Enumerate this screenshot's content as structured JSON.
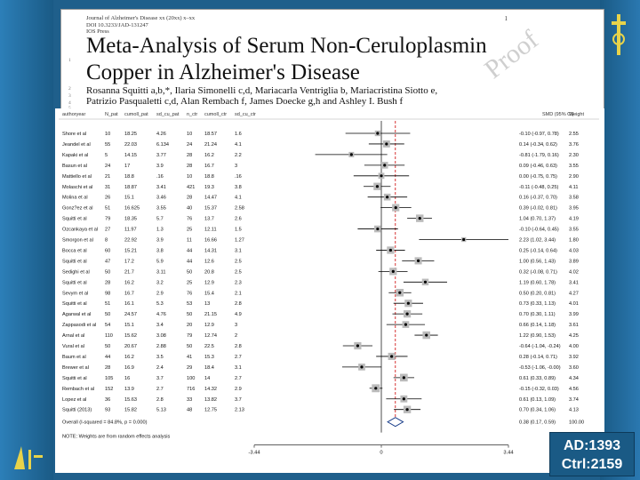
{
  "paper": {
    "journal": "Journal of Alzheimer's Disease xx (20xx) x–xx",
    "doi": "DOI 10.3233/JAD-131247",
    "press": "IOS Press",
    "page": "1",
    "title_line1": "Meta-Analysis of Serum Non-Ceruloplasmin",
    "title_line2": "Copper in Alzheimer's Disease",
    "authors_line1": "Rosanna Squitti a,b,*, Ilaria Simonelli c,d, Mariacarla Ventriglia b, Mariacristina Siotto e,",
    "authors_line2": "Patrizio Pasqualetti c,d, Alan Rembach f, James Doecke g,h and Ashley I. Bush f",
    "watermark": "Proof",
    "line_numbers": [
      "1",
      "2",
      "3",
      "4",
      "5"
    ]
  },
  "forest": {
    "headers": [
      "authoryear",
      "N_pat",
      "cumoll_pat",
      "sd_cu_pat",
      "n_ctr",
      "cumoll_ctr",
      "sd_cu_ctr",
      "SMD (95% CI)",
      "Weight"
    ],
    "rows": [
      {
        "author": "Shore et al",
        "n_pat": "10",
        "cu_pat": "18.25",
        "sd_pat": "4.26",
        "n_ctr": "10",
        "cu_ctr": "18.57",
        "sd_ctr": "1.6",
        "ci": "-0.10 (-0.97, 0.78)",
        "weight": "2.55",
        "smd": -0.1,
        "lo": -0.97,
        "hi": 0.78
      },
      {
        "author": "Jeandel et al",
        "n_pat": "55",
        "cu_pat": "22.03",
        "sd_pat": "6.134",
        "n_ctr": "24",
        "cu_ctr": "21.24",
        "sd_ctr": "4.1",
        "ci": "0.14 (-0.34, 0.62)",
        "weight": "3.76",
        "smd": 0.14,
        "lo": -0.34,
        "hi": 0.62
      },
      {
        "author": "Kapaki et al",
        "n_pat": "5",
        "cu_pat": "14.15",
        "sd_pat": "3.77",
        "n_ctr": "28",
        "cu_ctr": "16.2",
        "sd_ctr": "2.2",
        "ci": "-0.81 (-1.79, 0.16)",
        "weight": "2.30",
        "smd": -0.81,
        "lo": -1.79,
        "hi": 0.16
      },
      {
        "author": "Basun et al",
        "n_pat": "24",
        "cu_pat": "17",
        "sd_pat": "3.9",
        "n_ctr": "28",
        "cu_ctr": "16.7",
        "sd_ctr": "3",
        "ci": "0.09 (-0.46, 0.63)",
        "weight": "3.55",
        "smd": 0.09,
        "lo": -0.46,
        "hi": 0.63
      },
      {
        "author": "Mattiello et al",
        "n_pat": "21",
        "cu_pat": "18.8",
        "sd_pat": ".16",
        "n_ctr": "10",
        "cu_ctr": "18.8",
        "sd_ctr": ".16",
        "ci": "0.00 (-0.75, 0.75)",
        "weight": "2.90",
        "smd": 0.0,
        "lo": -0.75,
        "hi": 0.75
      },
      {
        "author": "Molaschi et al",
        "n_pat": "31",
        "cu_pat": "18.87",
        "sd_pat": "3.41",
        "n_ctr": "421",
        "cu_ctr": "19.3",
        "sd_ctr": "3.8",
        "ci": "-0.11 (-0.48, 0.25)",
        "weight": "4.11",
        "smd": -0.11,
        "lo": -0.48,
        "hi": 0.25
      },
      {
        "author": "Molina et al",
        "n_pat": "26",
        "cu_pat": "15.1",
        "sd_pat": "3.46",
        "n_ctr": "28",
        "cu_ctr": "14.47",
        "sd_ctr": "4.1",
        "ci": "0.16 (-0.37, 0.70)",
        "weight": "3.58",
        "smd": 0.16,
        "lo": -0.37,
        "hi": 0.7
      },
      {
        "author": "Gonz?ez et al",
        "n_pat": "51",
        "cu_pat": "16.625",
        "sd_pat": "3.55",
        "n_ctr": "40",
        "cu_ctr": "15.37",
        "sd_ctr": "2.58",
        "ci": "0.39 (-0.02, 0.81)",
        "weight": "3.95",
        "smd": 0.39,
        "lo": -0.02,
        "hi": 0.81
      },
      {
        "author": "Squitti et al",
        "n_pat": "79",
        "cu_pat": "18.35",
        "sd_pat": "5.7",
        "n_ctr": "76",
        "cu_ctr": "13.7",
        "sd_ctr": "2.6",
        "ci": "1.04 (0.70, 1.37)",
        "weight": "4.19",
        "smd": 1.04,
        "lo": 0.7,
        "hi": 1.37
      },
      {
        "author": "Ozcankaya et al",
        "n_pat": "27",
        "cu_pat": "11.97",
        "sd_pat": "1.3",
        "n_ctr": "25",
        "cu_ctr": "12.11",
        "sd_ctr": "1.5",
        "ci": "-0.10 (-0.64, 0.45)",
        "weight": "3.55",
        "smd": -0.1,
        "lo": -0.64,
        "hi": 0.45
      },
      {
        "author": "Smorgon et al",
        "n_pat": "8",
        "cu_pat": "22.92",
        "sd_pat": "3.9",
        "n_ctr": "11",
        "cu_ctr": "16.66",
        "sd_ctr": "1.27",
        "ci": "2.23 (1.02, 3.44)",
        "weight": "1.80",
        "smd": 2.23,
        "lo": 1.02,
        "hi": 3.44
      },
      {
        "author": "Bocca et al",
        "n_pat": "60",
        "cu_pat": "15.21",
        "sd_pat": "3.8",
        "n_ctr": "44",
        "cu_ctr": "14.31",
        "sd_ctr": "3.1",
        "ci": "0.25 (-0.14, 0.64)",
        "weight": "4.03",
        "smd": 0.25,
        "lo": -0.14,
        "hi": 0.64
      },
      {
        "author": "Squitti et al",
        "n_pat": "47",
        "cu_pat": "17.2",
        "sd_pat": "5.9",
        "n_ctr": "44",
        "cu_ctr": "12.6",
        "sd_ctr": "2.5",
        "ci": "1.00 (0.56, 1.43)",
        "weight": "3.89",
        "smd": 1.0,
        "lo": 0.56,
        "hi": 1.43
      },
      {
        "author": "Sedighi et al",
        "n_pat": "50",
        "cu_pat": "21.7",
        "sd_pat": "3.11",
        "n_ctr": "50",
        "cu_ctr": "20.8",
        "sd_ctr": "2.5",
        "ci": "0.32 (-0.08, 0.71)",
        "weight": "4.02",
        "smd": 0.32,
        "lo": -0.08,
        "hi": 0.71
      },
      {
        "author": "Squitti et al",
        "n_pat": "28",
        "cu_pat": "16.2",
        "sd_pat": "3.2",
        "n_ctr": "25",
        "cu_ctr": "12.9",
        "sd_ctr": "2.3",
        "ci": "1.19 (0.60, 1.78)",
        "weight": "3.41",
        "smd": 1.19,
        "lo": 0.6,
        "hi": 1.78
      },
      {
        "author": "Sevym et al",
        "n_pat": "98",
        "cu_pat": "16.7",
        "sd_pat": "2.9",
        "n_ctr": "76",
        "cu_ctr": "15.4",
        "sd_ctr": "2.1",
        "ci": "0.50 (0.20, 0.81)",
        "weight": "4.27",
        "smd": 0.5,
        "lo": 0.2,
        "hi": 0.81
      },
      {
        "author": "Squitti et al",
        "n_pat": "51",
        "cu_pat": "16.1",
        "sd_pat": "5.3",
        "n_ctr": "53",
        "cu_ctr": "13",
        "sd_ctr": "2.8",
        "ci": "0.73 (0.33, 1.13)",
        "weight": "4.01",
        "smd": 0.73,
        "lo": 0.33,
        "hi": 1.13
      },
      {
        "author": "Agarwal et al",
        "n_pat": "50",
        "cu_pat": "24.57",
        "sd_pat": "4.76",
        "n_ctr": "50",
        "cu_ctr": "21.15",
        "sd_ctr": "4.9",
        "ci": "0.70 (0.30, 1.11)",
        "weight": "3.99",
        "smd": 0.7,
        "lo": 0.3,
        "hi": 1.11
      },
      {
        "author": "Zappasodi et al",
        "n_pat": "54",
        "cu_pat": "15.1",
        "sd_pat": "3.4",
        "n_ctr": "20",
        "cu_ctr": "12.9",
        "sd_ctr": "3",
        "ci": "0.66 (0.14, 1.18)",
        "weight": "3.61",
        "smd": 0.66,
        "lo": 0.14,
        "hi": 1.18
      },
      {
        "author": "Arnal et al",
        "n_pat": "110",
        "cu_pat": "15.62",
        "sd_pat": "3.08",
        "n_ctr": "79",
        "cu_ctr": "12.74",
        "sd_ctr": "2",
        "ci": "1.22 (0.90, 1.53)",
        "weight": "4.25",
        "smd": 1.22,
        "lo": 0.9,
        "hi": 1.53
      },
      {
        "author": "Vural et al",
        "n_pat": "50",
        "cu_pat": "20.67",
        "sd_pat": "2.88",
        "n_ctr": "50",
        "cu_ctr": "22.5",
        "sd_ctr": "2.8",
        "ci": "-0.64 (-1.04, -0.24)",
        "weight": "4.00",
        "smd": -0.64,
        "lo": -1.04,
        "hi": -0.24
      },
      {
        "author": "Baum et al",
        "n_pat": "44",
        "cu_pat": "16.2",
        "sd_pat": "3.5",
        "n_ctr": "41",
        "cu_ctr": "15.3",
        "sd_ctr": "2.7",
        "ci": "0.28 (-0.14, 0.71)",
        "weight": "3.92",
        "smd": 0.28,
        "lo": -0.14,
        "hi": 0.71
      },
      {
        "author": "Brewer et al",
        "n_pat": "28",
        "cu_pat": "16.9",
        "sd_pat": "2.4",
        "n_ctr": "29",
        "cu_ctr": "18.4",
        "sd_ctr": "3.1",
        "ci": "-0.53 (-1.06, -0.00)",
        "weight": "3.60",
        "smd": -0.53,
        "lo": -1.06,
        "hi": 0.0
      },
      {
        "author": "Squitti et al",
        "n_pat": "105",
        "cu_pat": "16",
        "sd_pat": "3.7",
        "n_ctr": "100",
        "cu_ctr": "14",
        "sd_ctr": "2.7",
        "ci": "0.61 (0.33, 0.89)",
        "weight": "4.34",
        "smd": 0.61,
        "lo": 0.33,
        "hi": 0.89
      },
      {
        "author": "Rembach et al",
        "n_pat": "152",
        "cu_pat": "13.9",
        "sd_pat": "2.7",
        "n_ctr": "716",
        "cu_ctr": "14.32",
        "sd_ctr": "2.9",
        "ci": "-0.15 (-0.32, 0.03)",
        "weight": "4.56",
        "smd": -0.15,
        "lo": -0.32,
        "hi": 0.03
      },
      {
        "author": "Lopez et al",
        "n_pat": "36",
        "cu_pat": "15.63",
        "sd_pat": "2.8",
        "n_ctr": "33",
        "cu_ctr": "13.82",
        "sd_ctr": "3.7",
        "ci": "0.61 (0.13, 1.09)",
        "weight": "3.74",
        "smd": 0.61,
        "lo": 0.13,
        "hi": 1.09
      },
      {
        "author": "Squitti (2013)",
        "n_pat": "93",
        "cu_pat": "15.82",
        "sd_pat": "5.13",
        "n_ctr": "48",
        "cu_ctr": "12.75",
        "sd_ctr": "2.13",
        "ci": "0.70 (0.34, 1.06)",
        "weight": "4.13",
        "smd": 0.7,
        "lo": 0.34,
        "hi": 1.06
      }
    ],
    "overall": {
      "label": "Overall (I-squared = 84.8%, p = 0.000)",
      "ci": "0.38 (0.17, 0.59)",
      "weight": "100.00",
      "smd": 0.38,
      "lo": 0.17,
      "hi": 0.59
    },
    "note": "NOTE: Weights are from random effects analysis",
    "axis_ticks": [
      {
        "value": -3.44,
        "label": "-3.44"
      },
      {
        "value": 0,
        "label": "0"
      },
      {
        "value": 3.44,
        "label": "3.44"
      }
    ]
  },
  "badge": {
    "line1": "AD:1393",
    "line2": "Ctrl:2159"
  },
  "colors": {
    "background": "#1f5f8b",
    "badge": "#1a5a85",
    "pooled_line": "#cc0000",
    "diamond": "#1a3e8a"
  }
}
